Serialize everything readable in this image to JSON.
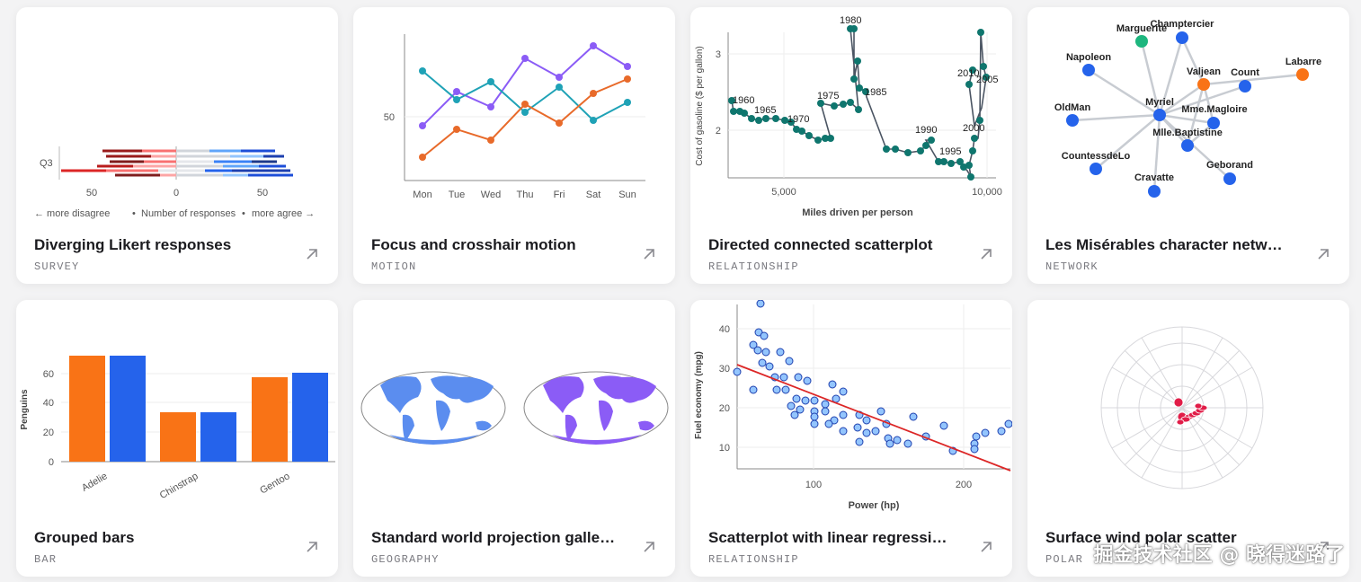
{
  "cards": [
    {
      "title": "Diverging Likert responses",
      "tag": "SURVEY",
      "thumb": {
        "row_label": "Q3",
        "ticks": [
          "50",
          "0",
          "50"
        ],
        "footer_left": "← more disagree",
        "footer_sep1": "•",
        "footer_mid": "Number of responses",
        "footer_sep2": "•",
        "footer_right": "more agree →"
      }
    },
    {
      "title": "Focus and crosshair motion",
      "tag": "MOTION",
      "thumb": {
        "y_tick": "50",
        "days": [
          "Mon",
          "Tue",
          "Wed",
          "Thu",
          "Fri",
          "Sat",
          "Sun"
        ]
      }
    },
    {
      "title": "Directed connected scatterplot",
      "tag": "RELATIONSHIP",
      "thumb": {
        "ylabel": "Cost of gasoline ($ per gallon)",
        "xlabel": "Miles driven per person",
        "x_ticks": [
          "5,000",
          "10,000"
        ],
        "y_ticks": [
          "3",
          "2"
        ],
        "year_labels": [
          "1960",
          "1965",
          "1970",
          "1975",
          "1980",
          "1985",
          "1990",
          "1995",
          "2000",
          "2005",
          "2010"
        ]
      }
    },
    {
      "title": "Les Misérables character netw…",
      "tag": "NETWORK",
      "thumb": {
        "nodes": [
          "Marguerite",
          "Champtercier",
          "Napoleon",
          "Valjean",
          "Count",
          "Labarre",
          "Myriel",
          "Mme.Magloire",
          "OldMan",
          "Mlle.Baptistine",
          "CountessdeLo",
          "Geborand",
          "Cravatte"
        ]
      }
    },
    {
      "title": "Grouped bars",
      "tag": "BAR",
      "thumb": {
        "ylabel": "Penguins",
        "y_ticks": [
          "60",
          "40",
          "20",
          "0"
        ],
        "categories": [
          "Adelie",
          "Chinstrap",
          "Gentoo"
        ]
      }
    },
    {
      "title": "Standard world projection galle…",
      "tag": "GEOGRAPHY",
      "thumb": {}
    },
    {
      "title": "Scatterplot with linear regressi…",
      "tag": "RELATIONSHIP",
      "thumb": {
        "ylabel": "Fuel economy (mpg)",
        "xlabel": "Power (hp)",
        "x_ticks": [
          "100",
          "200"
        ],
        "y_ticks": [
          "40",
          "30",
          "20",
          "10"
        ]
      }
    },
    {
      "title": "Surface wind polar scatter",
      "tag": "POLAR",
      "thumb": {}
    }
  ],
  "watermark": "掘金技术社区 @ 晓得迷路了",
  "colors": {
    "orange": "#f97316",
    "blue": "#2563eb",
    "teal": "#0f766e",
    "purple": "#8b5cf6",
    "red": "#dc2626"
  },
  "icons": {
    "card_arrow": "arrow-up-right-icon"
  }
}
